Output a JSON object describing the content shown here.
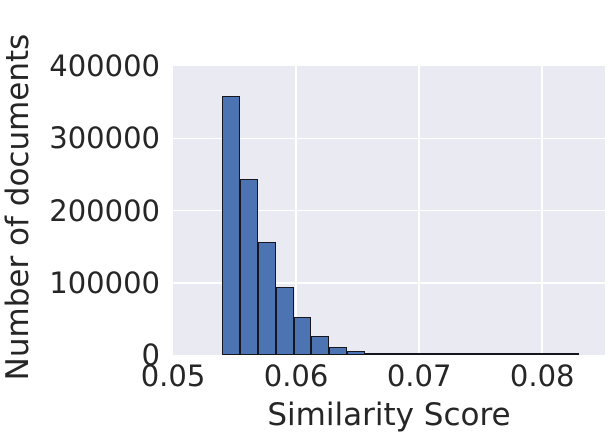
{
  "figure": {
    "background": "#ffffff",
    "text_color": "#262626"
  },
  "chart_data": {
    "type": "histogram",
    "title": "",
    "xlabel": "Similarity Score",
    "ylabel": "Number of documents",
    "xlim": [
      0.05,
      0.0851
    ],
    "ylim": [
      0,
      400000
    ],
    "x_ticks": {
      "values": [
        0.05,
        0.06,
        0.07,
        0.08
      ],
      "labels": [
        "0.05",
        "0.06",
        "0.07",
        "0.08"
      ]
    },
    "y_ticks": {
      "values": [
        0,
        100000,
        200000,
        300000,
        400000
      ],
      "labels": [
        "0",
        "100000",
        "200000",
        "300000",
        "400000"
      ]
    },
    "bins": {
      "start": 0.054,
      "width": 0.00145
    },
    "counts": [
      359000,
      244000,
      157000,
      94000,
      53000,
      26500,
      11500,
      5500,
      2800,
      1400,
      700,
      450,
      300,
      200,
      150,
      110,
      80,
      60,
      45,
      35
    ],
    "grid": "on",
    "legend": "none",
    "colors": {
      "bar_fill": "#4c73b2",
      "bar_edge": "#16161f",
      "plot_bg": "#eaeaf2",
      "grid": "#ffffff",
      "text": "#262626"
    }
  }
}
